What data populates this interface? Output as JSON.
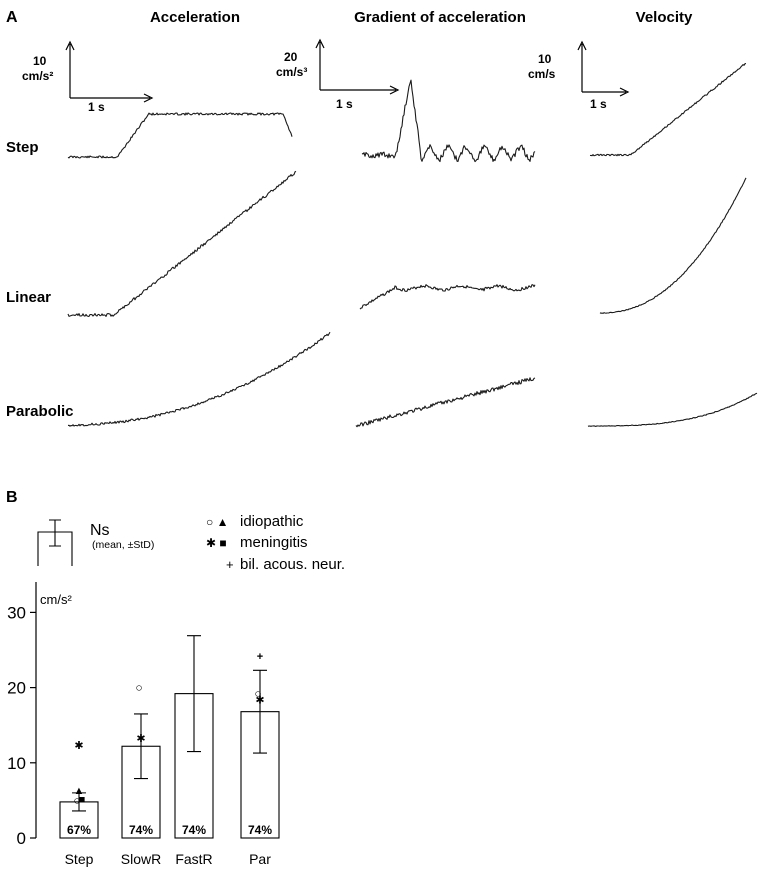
{
  "panel_a": {
    "label": "A",
    "columns": [
      {
        "title": "Acceleration",
        "scale_value": "10",
        "scale_unit": "cm/s²",
        "time_label": "1 s"
      },
      {
        "title": "Gradient of acceleration",
        "scale_value": "20",
        "scale_unit": "cm/s³",
        "time_label": "1 s"
      },
      {
        "title": "Velocity",
        "scale_value": "10",
        "scale_unit": "cm/s",
        "time_label": "1 s"
      }
    ],
    "rows": [
      {
        "label": "Step"
      },
      {
        "label": "Linear"
      },
      {
        "label": "Parabolic"
      }
    ]
  },
  "panel_b": {
    "label": "B",
    "legend": {
      "ns_label": "Ns",
      "ns_sub": "(mean, ±StD)",
      "entries": [
        {
          "symbols": "○ ▲",
          "label": "idiopathic"
        },
        {
          "symbols": "✱ ■",
          "label": "meningitis"
        },
        {
          "symbols": "+",
          "label": "bil. acous. neur."
        }
      ]
    }
  },
  "chart_data": {
    "type": "bar",
    "ylabel": "cm/s²",
    "ylim": [
      0,
      35
    ],
    "yticks": [
      0,
      10,
      20,
      30
    ],
    "categories": [
      "Step",
      "SlowR",
      "FastR",
      "Par"
    ],
    "series": [
      {
        "values": [
          4.8,
          12.2,
          19.2,
          16.8
        ],
        "std": [
          1.2,
          4.3,
          7.7,
          5.5
        ],
        "bar_labels": [
          "67%",
          "74%",
          "74%",
          "74%"
        ]
      }
    ],
    "patient_markers": [
      {
        "category": "Step",
        "marker": "○",
        "value": 5.0
      },
      {
        "category": "Step",
        "marker": "▲",
        "value": 6.4
      },
      {
        "category": "Step",
        "marker": "✱",
        "value": 12.4
      },
      {
        "category": "Step",
        "marker": "■",
        "value": 5.2
      },
      {
        "category": "SlowR",
        "marker": "○",
        "value": 20.0
      },
      {
        "category": "SlowR",
        "marker": "✱",
        "value": 13.3
      },
      {
        "category": "Par",
        "marker": "+",
        "value": 24.2
      },
      {
        "category": "Par",
        "marker": "○",
        "value": 19.2
      },
      {
        "category": "Par",
        "marker": "✱",
        "value": 18.4
      }
    ]
  }
}
